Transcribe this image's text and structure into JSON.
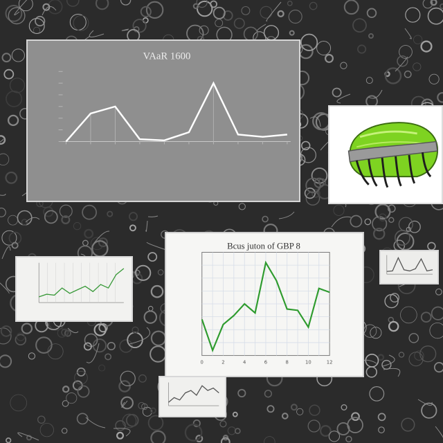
{
  "scene": {
    "background_color": "#2b2b2b",
    "accent_green": "#2e9b2e",
    "gray_chart_line": "#ffffff"
  },
  "chart_data": [
    {
      "type": "line",
      "title": "VAaR 1600",
      "xlabel": "",
      "ylabel": "",
      "categories": [
        "",
        "",
        "",
        "",
        "",
        "",
        "",
        "",
        "",
        ""
      ],
      "series": [
        {
          "values": [
            0,
            12,
            15,
            1,
            0.5,
            4,
            25,
            3,
            2,
            3
          ]
        }
      ],
      "ylim": [
        0,
        30
      ],
      "grid": false,
      "legend": "none"
    },
    {
      "type": "line",
      "title": "Bcus juton of GBP 8",
      "xlabel": "",
      "ylabel": "",
      "x_ticks": [
        "0",
        "2",
        "4",
        "6",
        "8",
        "10",
        "12"
      ],
      "x": [
        0,
        1,
        2,
        3,
        4,
        5,
        6,
        7,
        8,
        9,
        10,
        11,
        12
      ],
      "series": [
        {
          "values": [
            28,
            4,
            24,
            31,
            40,
            33,
            72,
            58,
            36,
            35,
            22,
            52,
            49
          ]
        }
      ],
      "ylim": [
        0,
        80
      ],
      "grid": true,
      "legend": "none"
    },
    {
      "type": "line",
      "title": "",
      "x": [
        0,
        1,
        2,
        3,
        4,
        5,
        6,
        7,
        8,
        9,
        10,
        11
      ],
      "series": [
        {
          "values": [
            30,
            33,
            32,
            40,
            34,
            38,
            42,
            36,
            44,
            40,
            55,
            62
          ]
        }
      ],
      "grid": true,
      "legend": "none"
    },
    {
      "type": "line",
      "title": "",
      "x": [
        0,
        1,
        2,
        3,
        4,
        5,
        6,
        7,
        8,
        9
      ],
      "series": [
        {
          "values": [
            20,
            24,
            22,
            28,
            30,
            26,
            34,
            30,
            32,
            28
          ]
        }
      ],
      "grid": false,
      "legend": "none"
    },
    {
      "type": "line",
      "title": "",
      "x": [
        0,
        1,
        2,
        3,
        4,
        5,
        6,
        7,
        8
      ],
      "series": [
        {
          "values": [
            5,
            6,
            30,
            8,
            6,
            10,
            28,
            6,
            8
          ]
        }
      ],
      "grid": false,
      "legend": "none"
    }
  ]
}
